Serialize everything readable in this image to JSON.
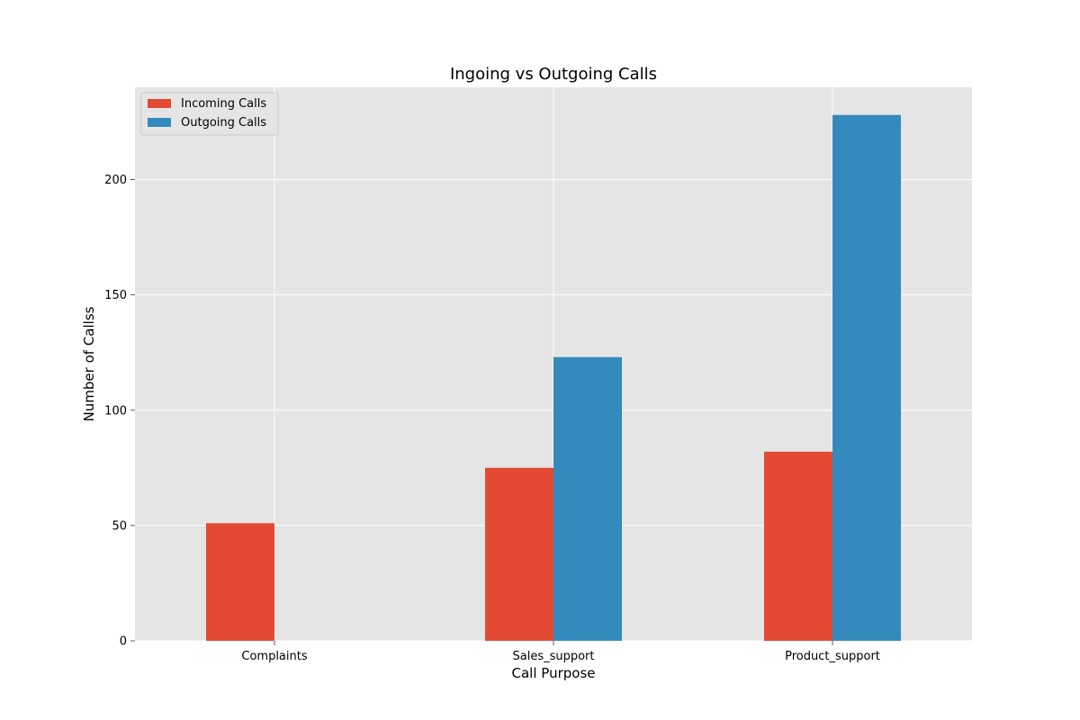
{
  "chart_data": {
    "type": "bar",
    "title": "Ingoing vs Outgoing Calls",
    "xlabel": "Call Purpose",
    "ylabel": "Number of Callss",
    "categories": [
      "Complaints",
      "Sales_support",
      "Product_support"
    ],
    "series": [
      {
        "name": "Incoming Calls",
        "values": [
          51,
          75,
          82
        ],
        "color": "#E24A33"
      },
      {
        "name": "Outgoing Calls",
        "values": [
          0,
          123,
          228
        ],
        "color": "#348ABD"
      }
    ],
    "ylim": [
      0,
      240
    ],
    "yticks": [
      0,
      50,
      100,
      150,
      200
    ],
    "grid": true,
    "legend_position": "top-left",
    "plot_background": "#E5E5E5",
    "grid_color": "#FFFFFF"
  }
}
